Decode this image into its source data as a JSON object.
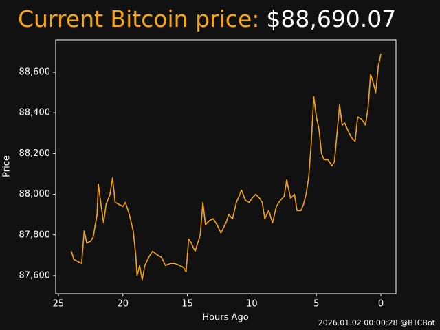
{
  "chart_data": {
    "type": "line",
    "title": "Current Bitcoin price:",
    "price": "$88,690.07",
    "footer": "2026.01.02 00:00:28 @BTCBot",
    "x_label": "Hours Ago",
    "y_label": "Price",
    "xlim": [
      25.21,
      -1.17
    ],
    "xticks": [
      25,
      20,
      15,
      10,
      5,
      0
    ],
    "ylim": [
      87512,
      88759
    ],
    "yticks": [
      {
        "value": 87600,
        "label": "87,600"
      },
      {
        "value": 87800,
        "label": "87,800"
      },
      {
        "value": 88000,
        "label": "88,000"
      },
      {
        "value": 88200,
        "label": "88,200"
      },
      {
        "value": 88400,
        "label": "88,400"
      },
      {
        "value": 88600,
        "label": "88,600"
      }
    ],
    "x": [
      24.0,
      23.8,
      23.5,
      23.2,
      23.0,
      22.8,
      22.5,
      22.3,
      22.0,
      21.9,
      21.7,
      21.5,
      21.3,
      21.0,
      20.8,
      20.6,
      20.3,
      20.0,
      19.8,
      19.5,
      19.2,
      19.0,
      18.9,
      18.7,
      18.5,
      18.3,
      18.0,
      17.7,
      17.3,
      17.0,
      16.7,
      16.3,
      16.0,
      15.6,
      15.3,
      15.1,
      14.9,
      14.7,
      14.4,
      14.2,
      14.0,
      13.8,
      13.6,
      13.3,
      13.0,
      12.7,
      12.4,
      12.0,
      11.8,
      11.5,
      11.2,
      11.0,
      10.8,
      10.5,
      10.2,
      10.0,
      9.7,
      9.4,
      9.2,
      9.0,
      8.7,
      8.4,
      8.1,
      7.8,
      7.5,
      7.3,
      7.0,
      6.7,
      6.5,
      6.2,
      6.0,
      5.8,
      5.6,
      5.4,
      5.2,
      5.0,
      4.8,
      4.6,
      4.4,
      4.1,
      3.8,
      3.6,
      3.4,
      3.2,
      3.0,
      2.8,
      2.6,
      2.3,
      2.0,
      1.8,
      1.5,
      1.2,
      1.0,
      0.8,
      0.6,
      0.4,
      0.2,
      0.0
    ],
    "series": [
      {
        "name": "Price",
        "color": "#f5a50f",
        "values": [
          87720,
          87680,
          87670,
          87660,
          87820,
          87760,
          87770,
          87790,
          87900,
          88050,
          87950,
          87860,
          87950,
          88000,
          88080,
          87960,
          87950,
          87940,
          87960,
          87900,
          87820,
          87700,
          87600,
          87650,
          87580,
          87650,
          87690,
          87720,
          87700,
          87690,
          87650,
          87660,
          87660,
          87650,
          87640,
          87620,
          87780,
          87760,
          87720,
          87760,
          87800,
          87960,
          87850,
          87870,
          87880,
          87850,
          87810,
          87860,
          87900,
          87880,
          87960,
          87990,
          88020,
          87970,
          87960,
          87980,
          88000,
          87980,
          87960,
          87880,
          87920,
          87860,
          87940,
          87970,
          87990,
          88070,
          87980,
          88000,
          87920,
          87920,
          87950,
          88000,
          88080,
          88250,
          88480,
          88380,
          88320,
          88200,
          88170,
          88170,
          88140,
          88160,
          88300,
          88440,
          88340,
          88350,
          88320,
          88280,
          88260,
          88380,
          88370,
          88340,
          88420,
          88590,
          88550,
          88500,
          88630,
          88690
        ]
      }
    ]
  }
}
